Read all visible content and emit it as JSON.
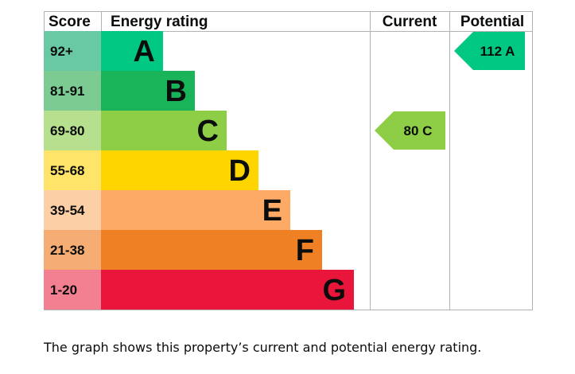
{
  "chart_data": {
    "type": "bar",
    "headers": {
      "score": "Score",
      "rating": "Energy rating",
      "current": "Current",
      "potential": "Potential"
    },
    "bands": [
      {
        "letter": "A",
        "range": "92+",
        "color": "#00c781",
        "score_color": "#68c9a4"
      },
      {
        "letter": "B",
        "range": "81-91",
        "color": "#19b459",
        "score_color": "#7ccb92"
      },
      {
        "letter": "C",
        "range": "69-80",
        "color": "#8dce46",
        "score_color": "#b6e08e"
      },
      {
        "letter": "D",
        "range": "55-68",
        "color": "#ffd500",
        "score_color": "#ffe46a"
      },
      {
        "letter": "E",
        "range": "39-54",
        "color": "#fcaa65",
        "score_color": "#fdcfa6"
      },
      {
        "letter": "F",
        "range": "21-38",
        "color": "#ef8023",
        "score_color": "#f5ad73"
      },
      {
        "letter": "G",
        "range": "1-20",
        "color": "#e9153b",
        "score_color": "#f28091"
      }
    ],
    "current": {
      "value": 80,
      "letter": "C",
      "label": "80 C",
      "color": "#8dce46"
    },
    "potential": {
      "value": 112,
      "letter": "A",
      "label": "112 A",
      "color": "#00c781"
    }
  },
  "caption": "The graph shows this property’s current and potential energy rating."
}
